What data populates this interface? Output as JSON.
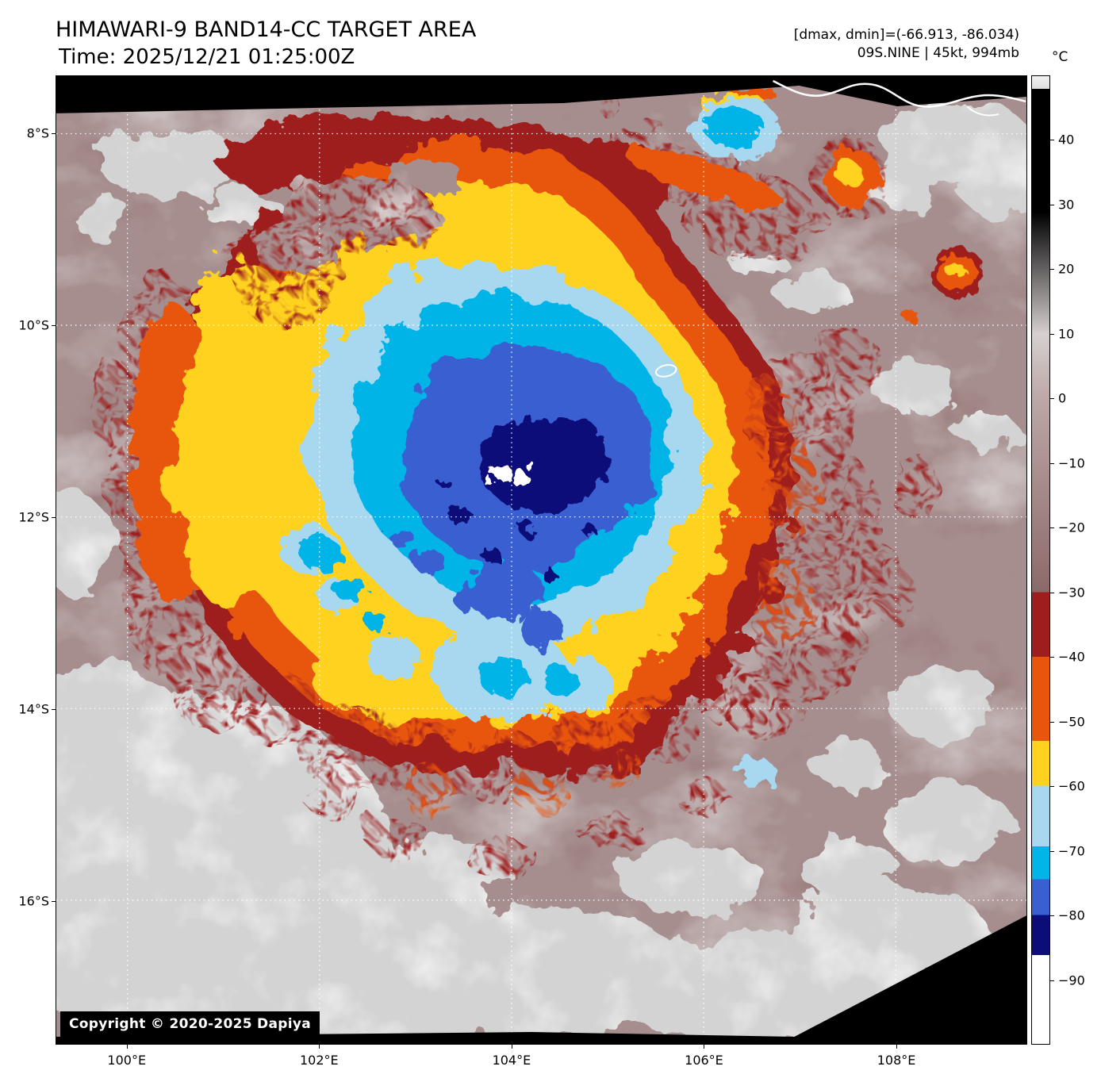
{
  "header": {
    "title": "HIMAWARI-9 BAND14-CC TARGET AREA",
    "time": "Time: 2025/12/21 01:25:00Z",
    "dminmax": "[dmax, dmin]=(-66.913, -86.034)",
    "storm": "09S.NINE | 45kt, 994mb"
  },
  "map": {
    "copyright": "Copyright © 2020-2025 Dapiya"
  },
  "axes": {
    "extent": {
      "lon_min": 99.26,
      "lon_max": 109.36,
      "lat_top": 7.4,
      "lat_bottom": 17.5
    },
    "x_ticks": [
      {
        "label": "100°E",
        "value": 100
      },
      {
        "label": "102°E",
        "value": 102
      },
      {
        "label": "104°E",
        "value": 104
      },
      {
        "label": "106°E",
        "value": 106
      },
      {
        "label": "108°E",
        "value": 108
      }
    ],
    "y_ticks": [
      {
        "label": "8°S",
        "value": 8
      },
      {
        "label": "10°S",
        "value": 10
      },
      {
        "label": "12°S",
        "value": 12
      },
      {
        "label": "14°S",
        "value": 14
      },
      {
        "label": "16°S",
        "value": 16
      }
    ]
  },
  "colorbar": {
    "unit": "°C",
    "vmax": 50,
    "vmin": -100,
    "tick_values": [
      40,
      30,
      20,
      10,
      0,
      -10,
      -20,
      -30,
      -40,
      -50,
      -60,
      -70,
      -80,
      -90
    ],
    "tick_labels": [
      "40",
      "30",
      "20",
      "10",
      "0",
      "−10",
      "−20",
      "−30",
      "−40",
      "−50",
      "−60",
      "−70",
      "−80",
      "−90"
    ],
    "gradient_stops": [
      [
        "0%",
        "#f2f2f2"
      ],
      [
        "1.3%",
        "#dedede"
      ],
      [
        "1.3%",
        "#000000"
      ],
      [
        "14%",
        "#000000"
      ],
      [
        "26.7%",
        "#d6d0d0"
      ],
      [
        "33.3%",
        "#bda7a7"
      ],
      [
        "53.3%",
        "#8c6969"
      ],
      [
        "53.3%",
        "#9e1e1e"
      ],
      [
        "60%",
        "#9e1e1e"
      ],
      [
        "60%",
        "#e8560e"
      ],
      [
        "68.7%",
        "#e8560e"
      ],
      [
        "68.7%",
        "#ffd21f"
      ],
      [
        "73.3%",
        "#ffd21f"
      ],
      [
        "73.3%",
        "#a8d8f0"
      ],
      [
        "79.6%",
        "#a8d8f0"
      ],
      [
        "79.6%",
        "#00b4e8"
      ],
      [
        "83%",
        "#00b4e8"
      ],
      [
        "83%",
        "#3a5fd0"
      ],
      [
        "86.7%",
        "#3a5fd0"
      ],
      [
        "86.7%",
        "#0d0d7a"
      ],
      [
        "90.8%",
        "#0d0d7a"
      ],
      [
        "90.8%",
        "#ffffff"
      ],
      [
        "100%",
        "#ffffff"
      ]
    ]
  }
}
